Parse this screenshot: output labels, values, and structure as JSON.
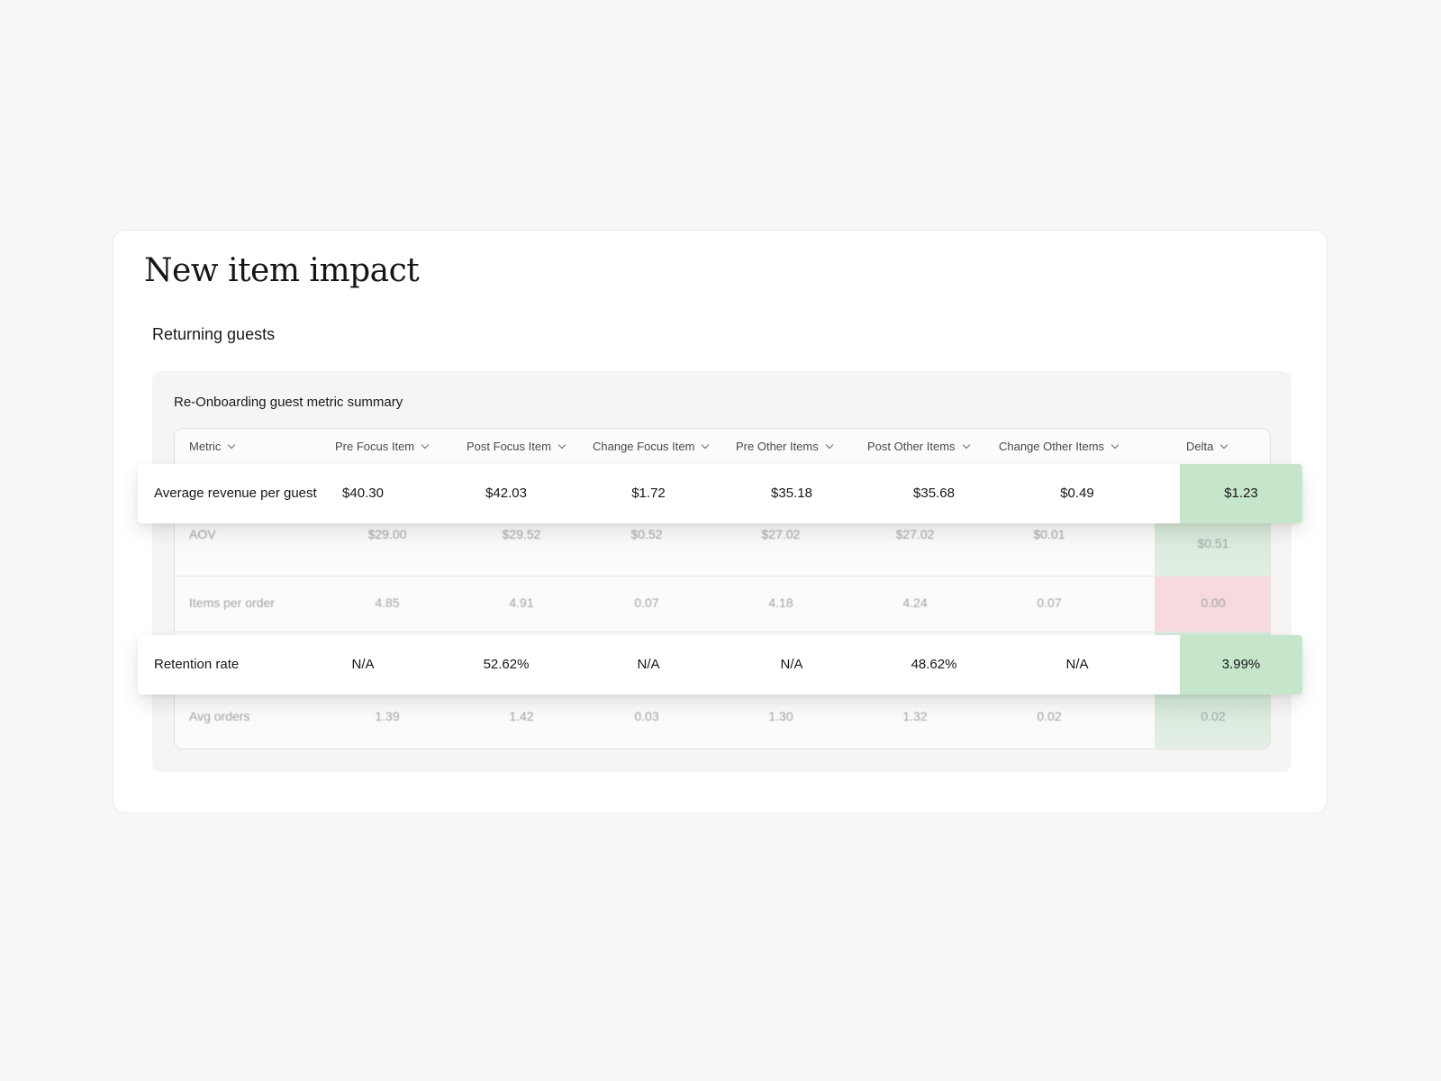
{
  "page": {
    "title": "New item impact",
    "section_title": "Returning guests",
    "panel_title": "Re-Onboarding guest metric summary"
  },
  "table": {
    "columns": [
      "Metric",
      "Pre Focus Item",
      "Post Focus Item",
      "Change Focus Item",
      "Pre Other Items",
      "Post Other Items",
      "Change Other Items",
      "Delta"
    ],
    "rows": [
      {
        "metric": "Average revenue per guest",
        "values": [
          "$40.30",
          "$42.03",
          "$1.72",
          "$35.18",
          "$35.68",
          "$0.49"
        ],
        "delta": "$1.23",
        "delta_status": "positive",
        "highlighted": true
      },
      {
        "metric": "AOV",
        "values": [
          "$29.00",
          "$29.52",
          "$0.52",
          "$27.02",
          "$27.02",
          "$0.01"
        ],
        "delta": "$0.51",
        "delta_status": "positive",
        "highlighted": false
      },
      {
        "metric": "Items per order",
        "values": [
          "4.85",
          "4.91",
          "0.07",
          "4.18",
          "4.24",
          "0.07"
        ],
        "delta": "0.00",
        "delta_status": "negative",
        "highlighted": false
      },
      {
        "metric": "Retention rate",
        "values": [
          "N/A",
          "52.62%",
          "N/A",
          "N/A",
          "48.62%",
          "N/A"
        ],
        "delta": "3.99%",
        "delta_status": "positive",
        "highlighted": true
      },
      {
        "metric": "Avg orders",
        "values": [
          "1.39",
          "1.42",
          "0.03",
          "1.30",
          "1.32",
          "0.02"
        ],
        "delta": "0.02",
        "delta_status": "positive",
        "highlighted": false
      }
    ]
  },
  "colors": {
    "positive_strong": "#c6e6cc",
    "positive_soft": "#dcece0",
    "negative_soft": "#f6dadd",
    "background": "#f8f7f5"
  }
}
